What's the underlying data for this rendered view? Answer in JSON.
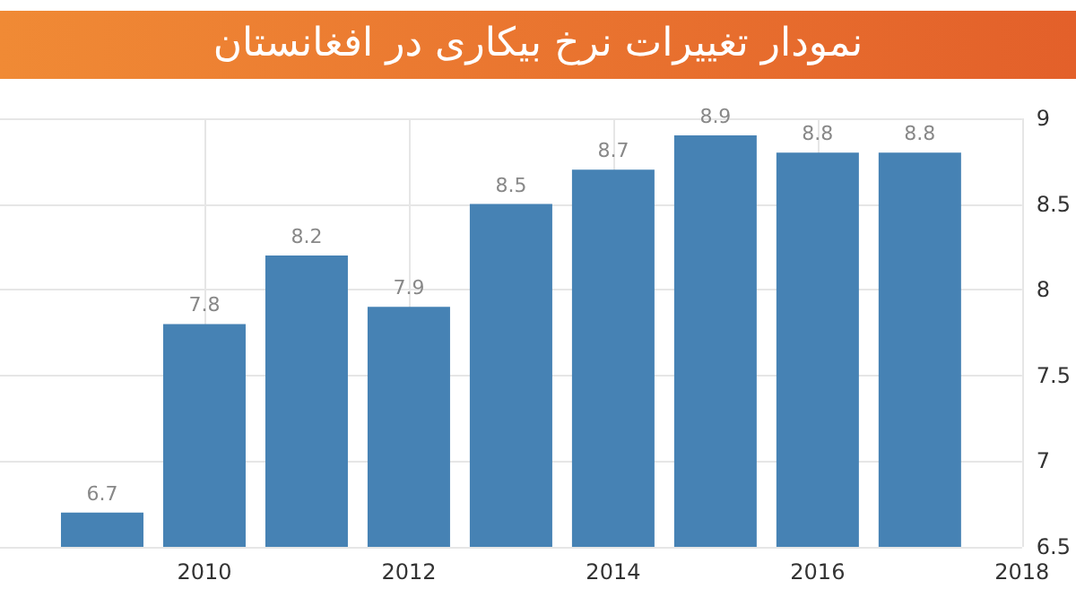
{
  "chart_data": {
    "type": "bar",
    "title": "نمودار تغییرات نرخ بیکاری در افغانستان",
    "x": [
      2009,
      2010,
      2011,
      2012,
      2013,
      2014,
      2015,
      2016,
      2017
    ],
    "values": [
      6.7,
      7.8,
      8.2,
      7.9,
      8.5,
      8.7,
      8.9,
      8.8,
      8.8
    ],
    "color": "#4682b4",
    "xlim": [
      2008,
      2018
    ],
    "xticks": [
      2010,
      2012,
      2014,
      2016,
      2018
    ],
    "ylim": [
      6.5,
      9
    ],
    "yticks": [
      6.5,
      7,
      7.5,
      8,
      8.5,
      9
    ],
    "grid": true,
    "data_labels": true
  }
}
